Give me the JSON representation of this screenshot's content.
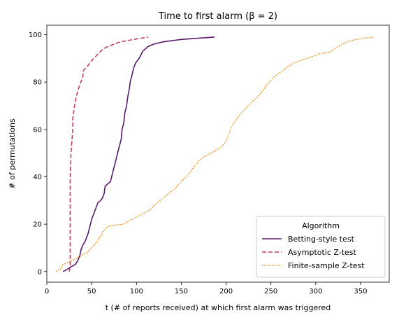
{
  "chart_data": {
    "type": "line",
    "title": "Time to first alarm (β = 2)",
    "xlabel": "t (# of reports received) at which first alarm was triggered",
    "ylabel": "# of permutations",
    "xlim": [
      0,
      382
    ],
    "ylim": [
      -4.5,
      104
    ],
    "xticks": [
      0,
      50,
      100,
      150,
      200,
      250,
      300,
      350
    ],
    "yticks": [
      0,
      20,
      40,
      60,
      80,
      100
    ],
    "grid": false,
    "legend": {
      "title": "Algorithm",
      "placement": "bottom-right"
    },
    "series": [
      {
        "name": "Betting-style test",
        "color": "#5a1a6e",
        "dash": "solid",
        "points": [
          [
            18,
            0
          ],
          [
            23,
            1
          ],
          [
            27,
            2
          ],
          [
            32,
            3
          ],
          [
            35,
            5
          ],
          [
            37,
            7
          ],
          [
            38,
            9
          ],
          [
            40,
            11
          ],
          [
            43,
            13
          ],
          [
            46,
            16
          ],
          [
            48,
            19
          ],
          [
            50,
            22
          ],
          [
            53,
            25
          ],
          [
            55,
            27
          ],
          [
            57,
            29
          ],
          [
            60,
            30
          ],
          [
            62,
            31
          ],
          [
            64,
            33
          ],
          [
            65,
            36
          ],
          [
            68,
            37
          ],
          [
            71,
            38
          ],
          [
            73,
            41
          ],
          [
            75,
            44
          ],
          [
            77,
            47
          ],
          [
            79,
            50
          ],
          [
            81,
            53
          ],
          [
            83,
            56
          ],
          [
            84,
            60
          ],
          [
            86,
            63
          ],
          [
            87,
            67
          ],
          [
            89,
            70
          ],
          [
            90,
            73
          ],
          [
            92,
            77
          ],
          [
            93,
            80
          ],
          [
            95,
            83
          ],
          [
            97,
            86
          ],
          [
            99,
            88
          ],
          [
            103,
            90
          ],
          [
            107,
            93
          ],
          [
            113,
            95
          ],
          [
            119,
            96
          ],
          [
            130,
            97
          ],
          [
            150,
            98
          ],
          [
            187,
            99
          ]
        ]
      },
      {
        "name": "Asymptotic Z-test",
        "color": "#c2405e",
        "dash": "dashed",
        "points": [
          [
            25,
            0
          ],
          [
            26,
            2
          ],
          [
            26,
            5
          ],
          [
            26,
            10
          ],
          [
            26,
            20
          ],
          [
            26,
            30
          ],
          [
            26,
            40
          ],
          [
            27,
            50
          ],
          [
            28,
            55
          ],
          [
            29,
            60
          ],
          [
            29,
            65
          ],
          [
            31,
            70
          ],
          [
            33,
            74
          ],
          [
            35,
            77
          ],
          [
            38,
            80
          ],
          [
            40,
            82
          ],
          [
            41,
            85
          ],
          [
            46,
            87
          ],
          [
            50,
            89
          ],
          [
            55,
            91
          ],
          [
            60,
            93
          ],
          [
            63,
            94
          ],
          [
            68,
            95
          ],
          [
            75,
            96
          ],
          [
            82,
            97
          ],
          [
            90,
            97.5
          ],
          [
            97,
            98
          ],
          [
            105,
            98.5
          ],
          [
            113,
            99
          ]
        ]
      },
      {
        "name": "Finite-sample Z-test",
        "color": "#f08a0c",
        "dash": "dotted",
        "points": [
          [
            10,
            0
          ],
          [
            15,
            1
          ],
          [
            18,
            3
          ],
          [
            25,
            4
          ],
          [
            30,
            5
          ],
          [
            35,
            6
          ],
          [
            40,
            7
          ],
          [
            45,
            8
          ],
          [
            50,
            10
          ],
          [
            55,
            12
          ],
          [
            60,
            15
          ],
          [
            63,
            17
          ],
          [
            68,
            19
          ],
          [
            75,
            19.5
          ],
          [
            85,
            20
          ],
          [
            95,
            22
          ],
          [
            105,
            24
          ],
          [
            115,
            26
          ],
          [
            120,
            28
          ],
          [
            127,
            30
          ],
          [
            130,
            31
          ],
          [
            136,
            33
          ],
          [
            143,
            35
          ],
          [
            150,
            38
          ],
          [
            158,
            41
          ],
          [
            164,
            44
          ],
          [
            170,
            47
          ],
          [
            178,
            49
          ],
          [
            188,
            51
          ],
          [
            196,
            53
          ],
          [
            200,
            55
          ],
          [
            203,
            58
          ],
          [
            206,
            61
          ],
          [
            211,
            64
          ],
          [
            215,
            66
          ],
          [
            222,
            69
          ],
          [
            230,
            72
          ],
          [
            236,
            74
          ],
          [
            240,
            76
          ],
          [
            246,
            79
          ],
          [
            253,
            82
          ],
          [
            260,
            84
          ],
          [
            267,
            86
          ],
          [
            275,
            88
          ],
          [
            282,
            89
          ],
          [
            290,
            90
          ],
          [
            298,
            91
          ],
          [
            305,
            92
          ],
          [
            315,
            92.5
          ],
          [
            325,
            95
          ],
          [
            335,
            97
          ],
          [
            345,
            98
          ],
          [
            365,
            99
          ]
        ]
      }
    ]
  }
}
